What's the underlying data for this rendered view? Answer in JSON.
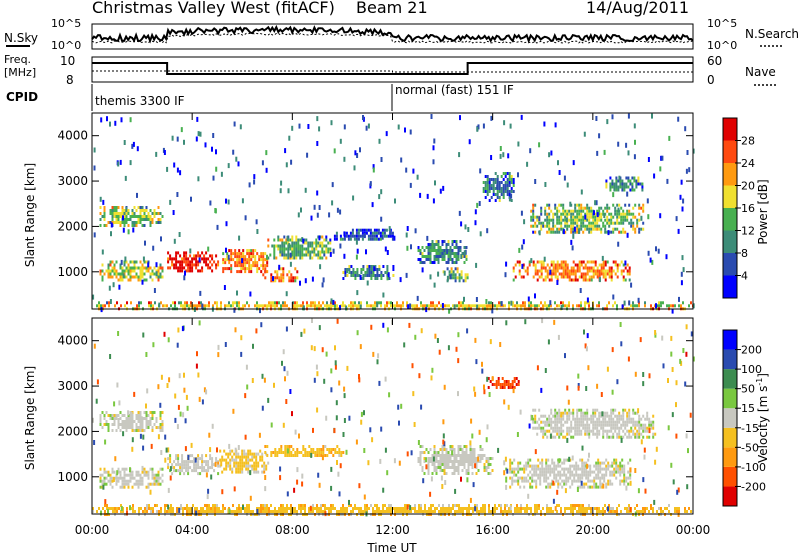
{
  "header": {
    "station": "Christmas Valley West (fitACF)",
    "beam": "Beam 21",
    "date": "14/Aug/2011"
  },
  "noise_panel": {
    "left_label": "N.Sky",
    "right_label": "N.Search",
    "left_ticks": [
      "10^5",
      "10^0"
    ],
    "right_ticks": [
      "10^5",
      "10^0"
    ]
  },
  "freq_panel": {
    "left_label_1": "Freq.",
    "left_label_2": "[MHz]",
    "right_label": "Nave",
    "left_ticks": [
      "10",
      "8"
    ],
    "right_ticks": [
      "60",
      "0"
    ]
  },
  "cpid": {
    "label": "CPID",
    "modes": [
      {
        "name": "themis 3300 IF",
        "start_hour": 0,
        "end_hour": 12
      },
      {
        "name": "normal (fast) 151 IF",
        "start_hour": 12,
        "end_hour": 24
      }
    ]
  },
  "chart_data": [
    {
      "type": "heatmap",
      "name": "power",
      "ylabel": "Slant Range [km]",
      "ylim": [
        180,
        4500
      ],
      "yticks": [
        1000,
        2000,
        3000,
        4000
      ],
      "colorbar_label": "Power [dB]",
      "colorbar_ticks": [
        "4",
        "8",
        "12",
        "16",
        "20",
        "24",
        "28"
      ],
      "colorbar_range": [
        0,
        30
      ],
      "colors": [
        "#0000ff",
        "#2a4bb0",
        "#3c8c78",
        "#48b050",
        "#f0e030",
        "#ff9a10",
        "#ff4a10",
        "#e00000"
      ],
      "regions": [
        {
          "t": [
            0.3,
            2.8
          ],
          "r": [
            2050,
            2450
          ],
          "v": 14
        },
        {
          "t": [
            0.3,
            2.8
          ],
          "r": [
            800,
            1250
          ],
          "v": 16
        },
        {
          "t": [
            3.0,
            5.0
          ],
          "r": [
            1050,
            1450
          ],
          "v": 27
        },
        {
          "t": [
            5.2,
            7.0
          ],
          "r": [
            1000,
            1500
          ],
          "v": 21
        },
        {
          "t": [
            6.8,
            8.2
          ],
          "r": [
            800,
            1100
          ],
          "v": 22
        },
        {
          "t": [
            7.0,
            9.5
          ],
          "r": [
            1300,
            1800
          ],
          "v": 13
        },
        {
          "t": [
            9.5,
            12.0
          ],
          "r": [
            1700,
            1950
          ],
          "v": 6
        },
        {
          "t": [
            10.0,
            12.0
          ],
          "r": [
            850,
            1150
          ],
          "v": 9
        },
        {
          "t": [
            13.0,
            15.0
          ],
          "r": [
            1200,
            1700
          ],
          "v": 10
        },
        {
          "t": [
            14.0,
            15.0
          ],
          "r": [
            800,
            1100
          ],
          "v": 12
        },
        {
          "t": [
            15.6,
            16.8
          ],
          "r": [
            2600,
            3200
          ],
          "v": 8
        },
        {
          "t": [
            16.8,
            21.5
          ],
          "r": [
            850,
            1250
          ],
          "v": 22
        },
        {
          "t": [
            17.5,
            22.0
          ],
          "r": [
            1900,
            2500
          ],
          "v": 14
        },
        {
          "t": [
            20.5,
            22.0
          ],
          "r": [
            2800,
            3100
          ],
          "v": 9
        },
        {
          "t": [
            0.0,
            24.0
          ],
          "r": [
            200,
            350
          ],
          "v": 18
        }
      ]
    },
    {
      "type": "heatmap",
      "name": "velocity",
      "ylabel": "Slant Range [km]",
      "ylim": [
        180,
        4500
      ],
      "yticks": [
        1000,
        2000,
        3000,
        4000
      ],
      "xlabel": "Time UT",
      "xticks": [
        "00:00",
        "04:00",
        "08:00",
        "12:00",
        "16:00",
        "20:00",
        "00:00"
      ],
      "xlim": [
        0,
        24
      ],
      "colorbar_label": "Velocity [m s^-1]",
      "colorbar_ticks": [
        "200",
        "100",
        "50",
        "15",
        "-15",
        "-50",
        "-100",
        "-200"
      ],
      "colorbar_range": [
        -250,
        250
      ],
      "colors": [
        "#e00000",
        "#ff5000",
        "#ff9a10",
        "#f5c020",
        "#c8c8c0",
        "#7ac840",
        "#3c8c50",
        "#2a4bb0",
        "#0000ff"
      ],
      "regions": [
        {
          "t": [
            0.3,
            2.8
          ],
          "r": [
            2000,
            2450
          ],
          "v": 0
        },
        {
          "t": [
            0.3,
            2.8
          ],
          "r": [
            800,
            1200
          ],
          "v": 0
        },
        {
          "t": [
            3.0,
            5.0
          ],
          "r": [
            1100,
            1500
          ],
          "v": -5
        },
        {
          "t": [
            5.0,
            7.0
          ],
          "r": [
            1100,
            1600
          ],
          "v": -40
        },
        {
          "t": [
            6.8,
            10.0
          ],
          "r": [
            1450,
            1700
          ],
          "v": -60
        },
        {
          "t": [
            13.0,
            16.0
          ],
          "r": [
            1100,
            1700
          ],
          "v": 5
        },
        {
          "t": [
            15.8,
            17.0
          ],
          "r": [
            2950,
            3200
          ],
          "v": -180
        },
        {
          "t": [
            16.5,
            21.5
          ],
          "r": [
            800,
            1400
          ],
          "v": 0
        },
        {
          "t": [
            17.5,
            22.5
          ],
          "r": [
            1900,
            2500
          ],
          "v": 0
        },
        {
          "t": [
            0.0,
            24.0
          ],
          "r": [
            200,
            400
          ],
          "v": -60
        }
      ]
    }
  ]
}
